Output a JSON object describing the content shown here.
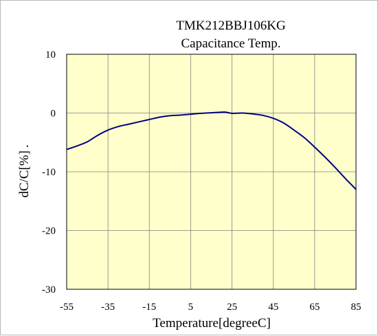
{
  "chart_data": {
    "type": "line",
    "title": "TMK212BBJ106KG",
    "subtitle": "Capacitance Temp.",
    "xlabel": "Temperature[degreeC]",
    "ylabel": "dC/C[%]",
    "ylabel_suffix": ".",
    "xlim": [
      -55,
      85
    ],
    "ylim": [
      -30,
      10
    ],
    "x_ticks": [
      -55,
      -35,
      -15,
      5,
      25,
      45,
      65,
      85
    ],
    "y_ticks": [
      10,
      0,
      -10,
      -20,
      -30
    ],
    "grid": true,
    "legend": "none",
    "colors": {
      "plot_background": "#ffffcc",
      "line": "#000080",
      "grid": "#808080"
    },
    "series": [
      {
        "x": [
          -55,
          -50,
          -45,
          -40,
          -35,
          -30,
          -25,
          -20,
          -15,
          -10,
          -5,
          0,
          5,
          10,
          15,
          20,
          22,
          25,
          30,
          35,
          40,
          45,
          50,
          55,
          60,
          65,
          70,
          75,
          80,
          85
        ],
        "y": [
          -6.2,
          -5.6,
          -4.9,
          -3.8,
          -2.9,
          -2.3,
          -1.9,
          -1.5,
          -1.1,
          -0.7,
          -0.45,
          -0.35,
          -0.2,
          -0.05,
          0.05,
          0.15,
          0.15,
          -0.05,
          0.0,
          -0.15,
          -0.4,
          -0.9,
          -1.7,
          -2.9,
          -4.2,
          -5.8,
          -7.5,
          -9.3,
          -11.2,
          -13.0
        ]
      }
    ]
  }
}
